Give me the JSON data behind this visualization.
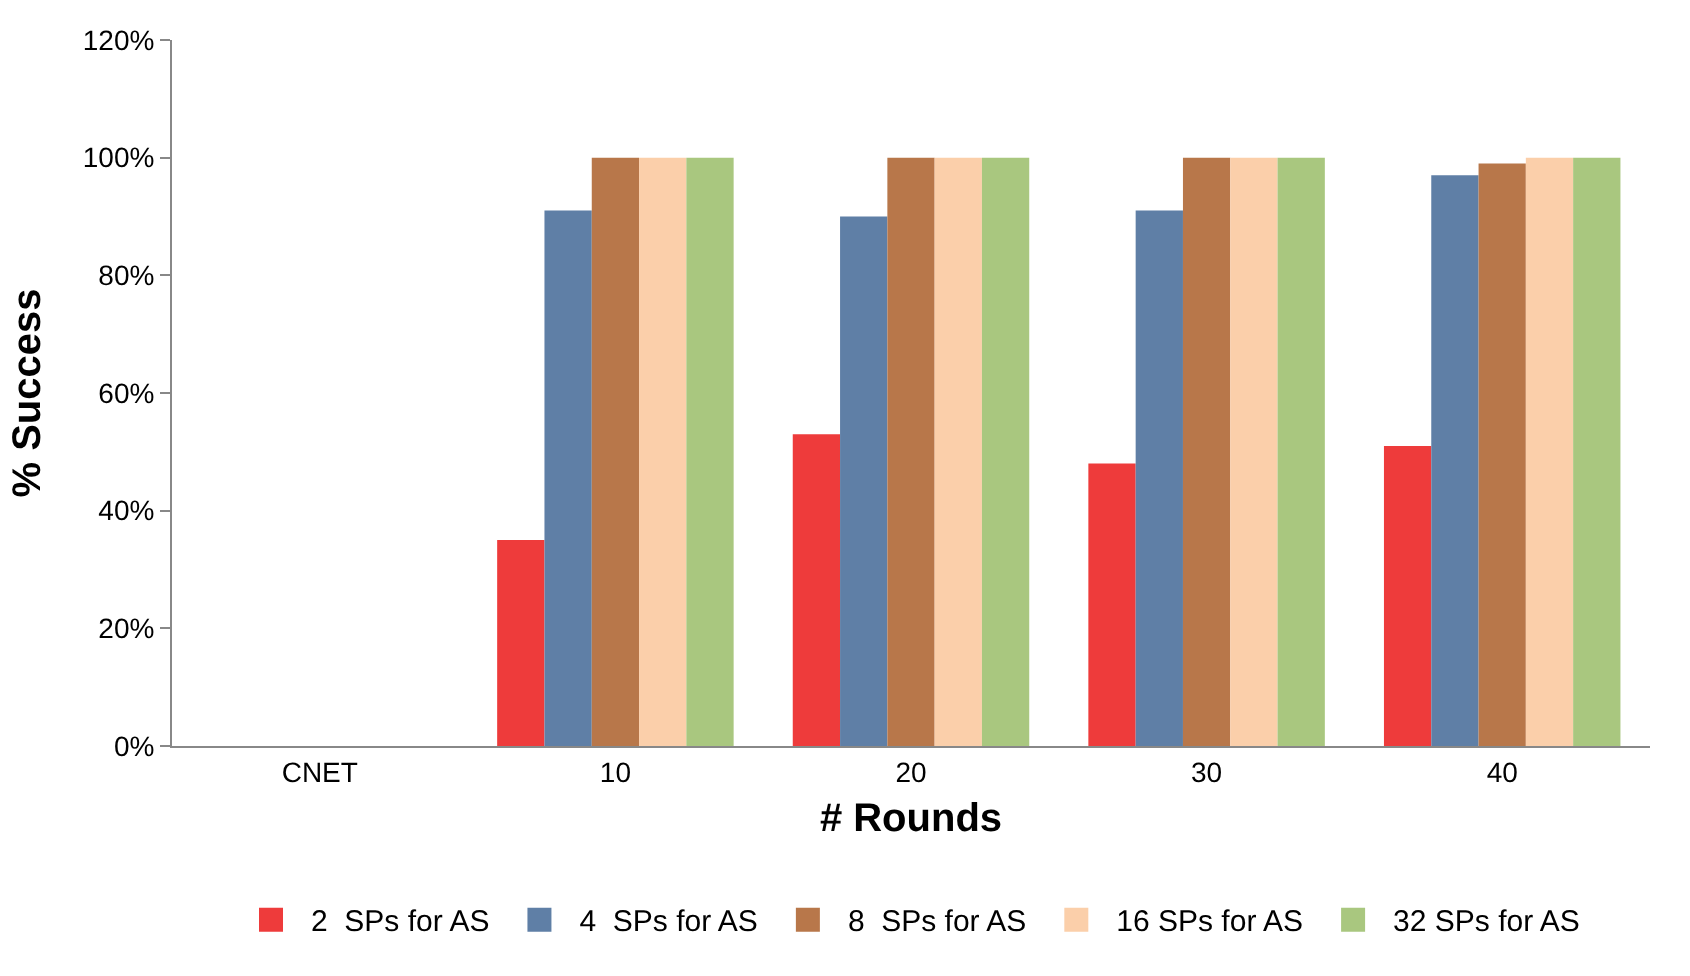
{
  "chart_data": {
    "type": "bar",
    "xlabel": "# Rounds",
    "ylabel": "% Success",
    "categories": [
      "CNET",
      "10",
      "20",
      "30",
      "40"
    ],
    "series": [
      {
        "name": "2  SPs for AS",
        "color": "#ee3b3b",
        "values": [
          0,
          35,
          53,
          48,
          51
        ]
      },
      {
        "name": "4  SPs for AS",
        "color": "#5f7fa6",
        "values": [
          0,
          91,
          90,
          91,
          97
        ]
      },
      {
        "name": "8  SPs for AS",
        "color": "#b8774a",
        "values": [
          0,
          100,
          100,
          100,
          99
        ]
      },
      {
        "name": "16 SPs for AS",
        "color": "#fbcfaa",
        "values": [
          0,
          100,
          100,
          100,
          100
        ]
      },
      {
        "name": "32 SPs for AS",
        "color": "#a9c77f",
        "values": [
          0,
          100,
          100,
          100,
          100
        ]
      }
    ],
    "ylim": [
      0,
      120
    ],
    "yticks": [
      {
        "value": 0,
        "label": "0%"
      },
      {
        "value": 20,
        "label": "20%"
      },
      {
        "value": 40,
        "label": "40%"
      },
      {
        "value": 60,
        "label": "60%"
      },
      {
        "value": 80,
        "label": "80%"
      },
      {
        "value": 100,
        "label": "100%"
      },
      {
        "value": 120,
        "label": "120%"
      }
    ],
    "legend": "bottom"
  }
}
